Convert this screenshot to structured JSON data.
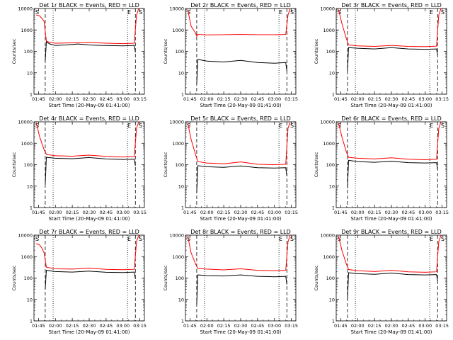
{
  "figure": {
    "ylabel": "Counts/sec",
    "xlabel": "Start Time (20-May-09 01:41:00)",
    "x_ticks": [
      "01:45",
      "02:00",
      "02:15",
      "02:30",
      "02:45",
      "03:00",
      "03:15"
    ],
    "y_ticks": [
      "1",
      "10",
      "100",
      "1000",
      "10000"
    ],
    "marker_s": "S",
    "marker_e": "E"
  },
  "chart_data": [
    {
      "type": "line",
      "title": "Det 1r BLACK = Events, RED = LLD",
      "xlabel": "Start Time (20-May-09 01:41:00)",
      "ylabel": "Counts/sec",
      "ylim": [
        1,
        10000
      ],
      "yscale": "log",
      "dashed_x": [
        "01:51",
        "03:11"
      ],
      "dotted_x": [
        "01:58",
        "03:04"
      ],
      "series": [
        {
          "name": "BLACK = Events",
          "color": "#000000",
          "x": [
            "01:51",
            "01:52",
            "01:55",
            "02:00",
            "02:10",
            "02:20",
            "02:30",
            "02:40",
            "02:50",
            "03:00",
            "03:10",
            "03:11"
          ],
          "y": [
            35,
            280,
            220,
            190,
            200,
            220,
            200,
            190,
            185,
            180,
            190,
            90
          ]
        },
        {
          "name": "RED = LLD",
          "color": "#ff0000",
          "x": [
            "01:43",
            "01:46",
            "01:48",
            "01:50",
            "01:52",
            "01:55",
            "02:00",
            "02:15",
            "02:30",
            "02:45",
            "03:00",
            "03:10",
            "03:12",
            "03:14"
          ],
          "y": [
            5000,
            4500,
            3500,
            2500,
            300,
            260,
            240,
            250,
            260,
            240,
            230,
            240,
            5000,
            10000
          ]
        }
      ]
    },
    {
      "type": "line",
      "title": "Det 2r BLACK = Events, RED = LLD",
      "xlabel": "Start Time (20-May-09 01:41:00)",
      "ylabel": "Counts/sec",
      "ylim": [
        1,
        10000
      ],
      "yscale": "log",
      "dashed_x": [
        "01:51",
        "03:11"
      ],
      "dotted_x": [
        "01:58",
        "03:04"
      ],
      "series": [
        {
          "name": "BLACK = Events",
          "color": "#000000",
          "x": [
            "01:51",
            "01:52",
            "02:00",
            "02:15",
            "02:30",
            "02:45",
            "03:00",
            "03:10",
            "03:11"
          ],
          "y": [
            3,
            42,
            35,
            32,
            38,
            30,
            28,
            30,
            12
          ]
        },
        {
          "name": "RED = LLD",
          "color": "#ff0000",
          "x": [
            "01:43",
            "01:46",
            "01:50",
            "01:51",
            "01:52",
            "02:00",
            "02:15",
            "02:30",
            "02:45",
            "03:00",
            "03:10",
            "03:12",
            "03:14"
          ],
          "y": [
            9000,
            1500,
            700,
            500,
            620,
            590,
            600,
            620,
            600,
            600,
            620,
            5000,
            10000
          ]
        }
      ]
    },
    {
      "type": "line",
      "title": "Det 3r BLACK = Events, RED = LLD",
      "xlabel": "Start Time (20-May-09 01:41:00)",
      "ylabel": "Counts/sec",
      "ylim": [
        1,
        10000
      ],
      "yscale": "log",
      "dashed_x": [
        "01:51",
        "03:11"
      ],
      "dotted_x": [
        "01:58",
        "03:04"
      ],
      "series": [
        {
          "name": "BLACK = Events",
          "color": "#000000",
          "x": [
            "01:51",
            "01:52",
            "02:00",
            "02:15",
            "02:30",
            "02:45",
            "03:00",
            "03:10",
            "03:11"
          ],
          "y": [
            12,
            150,
            140,
            130,
            150,
            130,
            125,
            130,
            70
          ]
        },
        {
          "name": "RED = LLD",
          "color": "#ff0000",
          "x": [
            "01:43",
            "01:46",
            "01:50",
            "01:52",
            "02:00",
            "02:15",
            "02:30",
            "02:45",
            "03:00",
            "03:10",
            "03:12",
            "03:14"
          ],
          "y": [
            9000,
            2000,
            400,
            200,
            180,
            170,
            190,
            170,
            165,
            175,
            5000,
            10000
          ]
        }
      ]
    },
    {
      "type": "line",
      "title": "Det 4r BLACK = Events, RED = LLD",
      "xlabel": "Start Time (20-May-09 01:41:00)",
      "ylabel": "Counts/sec",
      "ylim": [
        1,
        10000
      ],
      "yscale": "log",
      "dashed_x": [
        "01:51",
        "03:11"
      ],
      "dotted_x": [
        "01:58",
        "03:04"
      ],
      "series": [
        {
          "name": "BLACK = Events",
          "color": "#000000",
          "x": [
            "01:51",
            "01:52",
            "02:00",
            "02:15",
            "02:30",
            "02:45",
            "03:00",
            "03:10",
            "03:11"
          ],
          "y": [
            12,
            220,
            200,
            190,
            215,
            185,
            175,
            180,
            90
          ]
        },
        {
          "name": "RED = LLD",
          "color": "#ff0000",
          "x": [
            "01:43",
            "01:46",
            "01:50",
            "01:52",
            "02:00",
            "02:15",
            "02:30",
            "02:45",
            "03:00",
            "03:10",
            "03:12",
            "03:14"
          ],
          "y": [
            9000,
            2000,
            500,
            300,
            260,
            250,
            280,
            245,
            230,
            240,
            5000,
            10000
          ]
        }
      ]
    },
    {
      "type": "line",
      "title": "Det 5r BLACK = Events, RED = LLD",
      "xlabel": "Start Time (20-May-09 01:41:00)",
      "ylabel": "Counts/sec",
      "ylim": [
        1,
        10000
      ],
      "yscale": "log",
      "dashed_x": [
        "01:51",
        "03:11"
      ],
      "dotted_x": [
        "01:58",
        "03:04"
      ],
      "series": [
        {
          "name": "BLACK = Events",
          "color": "#000000",
          "x": [
            "01:51",
            "01:52",
            "02:00",
            "02:15",
            "02:30",
            "02:45",
            "03:00",
            "03:10",
            "03:11"
          ],
          "y": [
            5,
            90,
            80,
            75,
            88,
            72,
            70,
            72,
            30
          ]
        },
        {
          "name": "RED = LLD",
          "color": "#ff0000",
          "x": [
            "01:43",
            "01:46",
            "01:50",
            "01:52",
            "02:00",
            "02:15",
            "02:30",
            "02:45",
            "03:00",
            "03:10",
            "03:12",
            "03:14"
          ],
          "y": [
            9000,
            1500,
            300,
            140,
            120,
            110,
            135,
            105,
            100,
            105,
            5000,
            10000
          ]
        }
      ]
    },
    {
      "type": "line",
      "title": "Det 6r BLACK = Events, RED = LLD",
      "xlabel": "Start Time (20-May-09 01:41:00)",
      "ylabel": "Counts/sec",
      "ylim": [
        1,
        10000
      ],
      "yscale": "log",
      "dashed_x": [
        "01:51",
        "03:11"
      ],
      "dotted_x": [
        "01:58",
        "03:04"
      ],
      "series": [
        {
          "name": "BLACK = Events",
          "color": "#000000",
          "x": [
            "01:51",
            "01:52",
            "02:00",
            "02:15",
            "02:30",
            "02:45",
            "03:00",
            "03:10",
            "03:11"
          ],
          "y": [
            8,
            160,
            140,
            130,
            145,
            125,
            120,
            125,
            60
          ]
        },
        {
          "name": "RED = LLD",
          "color": "#ff0000",
          "x": [
            "01:43",
            "01:46",
            "01:50",
            "01:52",
            "02:00",
            "02:15",
            "02:30",
            "02:45",
            "03:00",
            "03:10",
            "03:12",
            "03:14"
          ],
          "y": [
            9000,
            2000,
            400,
            220,
            200,
            185,
            210,
            180,
            170,
            180,
            5000,
            10000
          ]
        }
      ]
    },
    {
      "type": "line",
      "title": "Det 7r BLACK = Events, RED = LLD",
      "xlabel": "Start Time (20-May-09 01:41:00)",
      "ylabel": "Counts/sec",
      "ylim": [
        1,
        10000
      ],
      "yscale": "log",
      "dashed_x": [
        "01:51",
        "03:11"
      ],
      "dotted_x": [
        "01:58",
        "03:04"
      ],
      "series": [
        {
          "name": "BLACK = Events",
          "color": "#000000",
          "x": [
            "01:51",
            "01:52",
            "02:00",
            "02:15",
            "02:30",
            "02:45",
            "03:00",
            "03:10",
            "03:11"
          ],
          "y": [
            30,
            230,
            200,
            190,
            210,
            185,
            180,
            190,
            90
          ]
        },
        {
          "name": "RED = LLD",
          "color": "#ff0000",
          "x": [
            "01:43",
            "01:46",
            "01:48",
            "01:50",
            "01:52",
            "02:00",
            "02:15",
            "02:30",
            "02:45",
            "03:00",
            "03:10",
            "03:12",
            "03:14"
          ],
          "y": [
            4000,
            3500,
            2500,
            1500,
            320,
            270,
            260,
            290,
            255,
            245,
            255,
            5000,
            10000
          ]
        }
      ]
    },
    {
      "type": "line",
      "title": "Det 8r BLACK = Events, RED = LLD",
      "xlabel": "Start Time (20-May-09 01:41:00)",
      "ylabel": "Counts/sec",
      "ylim": [
        1,
        10000
      ],
      "yscale": "log",
      "dashed_x": [
        "01:51",
        "03:11"
      ],
      "dotted_x": [
        "01:58",
        "03:04"
      ],
      "series": [
        {
          "name": "BLACK = Events",
          "color": "#000000",
          "x": [
            "01:51",
            "01:52",
            "02:00",
            "02:15",
            "02:30",
            "02:45",
            "03:00",
            "03:10",
            "03:11"
          ],
          "y": [
            6,
            140,
            130,
            125,
            140,
            120,
            115,
            120,
            50
          ]
        },
        {
          "name": "RED = LLD",
          "color": "#ff0000",
          "x": [
            "01:43",
            "01:46",
            "01:50",
            "01:52",
            "02:00",
            "02:15",
            "02:30",
            "02:45",
            "03:00",
            "03:10",
            "03:12",
            "03:14"
          ],
          "y": [
            9000,
            1500,
            450,
            280,
            260,
            240,
            270,
            230,
            220,
            230,
            5000,
            10000
          ]
        }
      ]
    },
    {
      "type": "line",
      "title": "Det 9r BLACK = Events, RED = LLD",
      "xlabel": "Start Time (20-May-09 01:41:00)",
      "ylabel": "Counts/sec",
      "ylim": [
        1,
        10000
      ],
      "yscale": "log",
      "dashed_x": [
        "01:51",
        "03:11"
      ],
      "dotted_x": [
        "01:58",
        "03:04"
      ],
      "series": [
        {
          "name": "BLACK = Events",
          "color": "#000000",
          "x": [
            "01:51",
            "01:52",
            "02:00",
            "02:15",
            "02:30",
            "02:45",
            "03:00",
            "03:10",
            "03:11"
          ],
          "y": [
            10,
            175,
            160,
            150,
            170,
            145,
            140,
            145,
            70
          ]
        },
        {
          "name": "RED = LLD",
          "color": "#ff0000",
          "x": [
            "01:43",
            "01:46",
            "01:50",
            "01:52",
            "02:00",
            "02:15",
            "02:30",
            "02:45",
            "03:00",
            "03:10",
            "03:12",
            "03:14"
          ],
          "y": [
            9000,
            2000,
            450,
            250,
            220,
            200,
            230,
            195,
            185,
            195,
            5000,
            10000
          ]
        }
      ]
    }
  ]
}
